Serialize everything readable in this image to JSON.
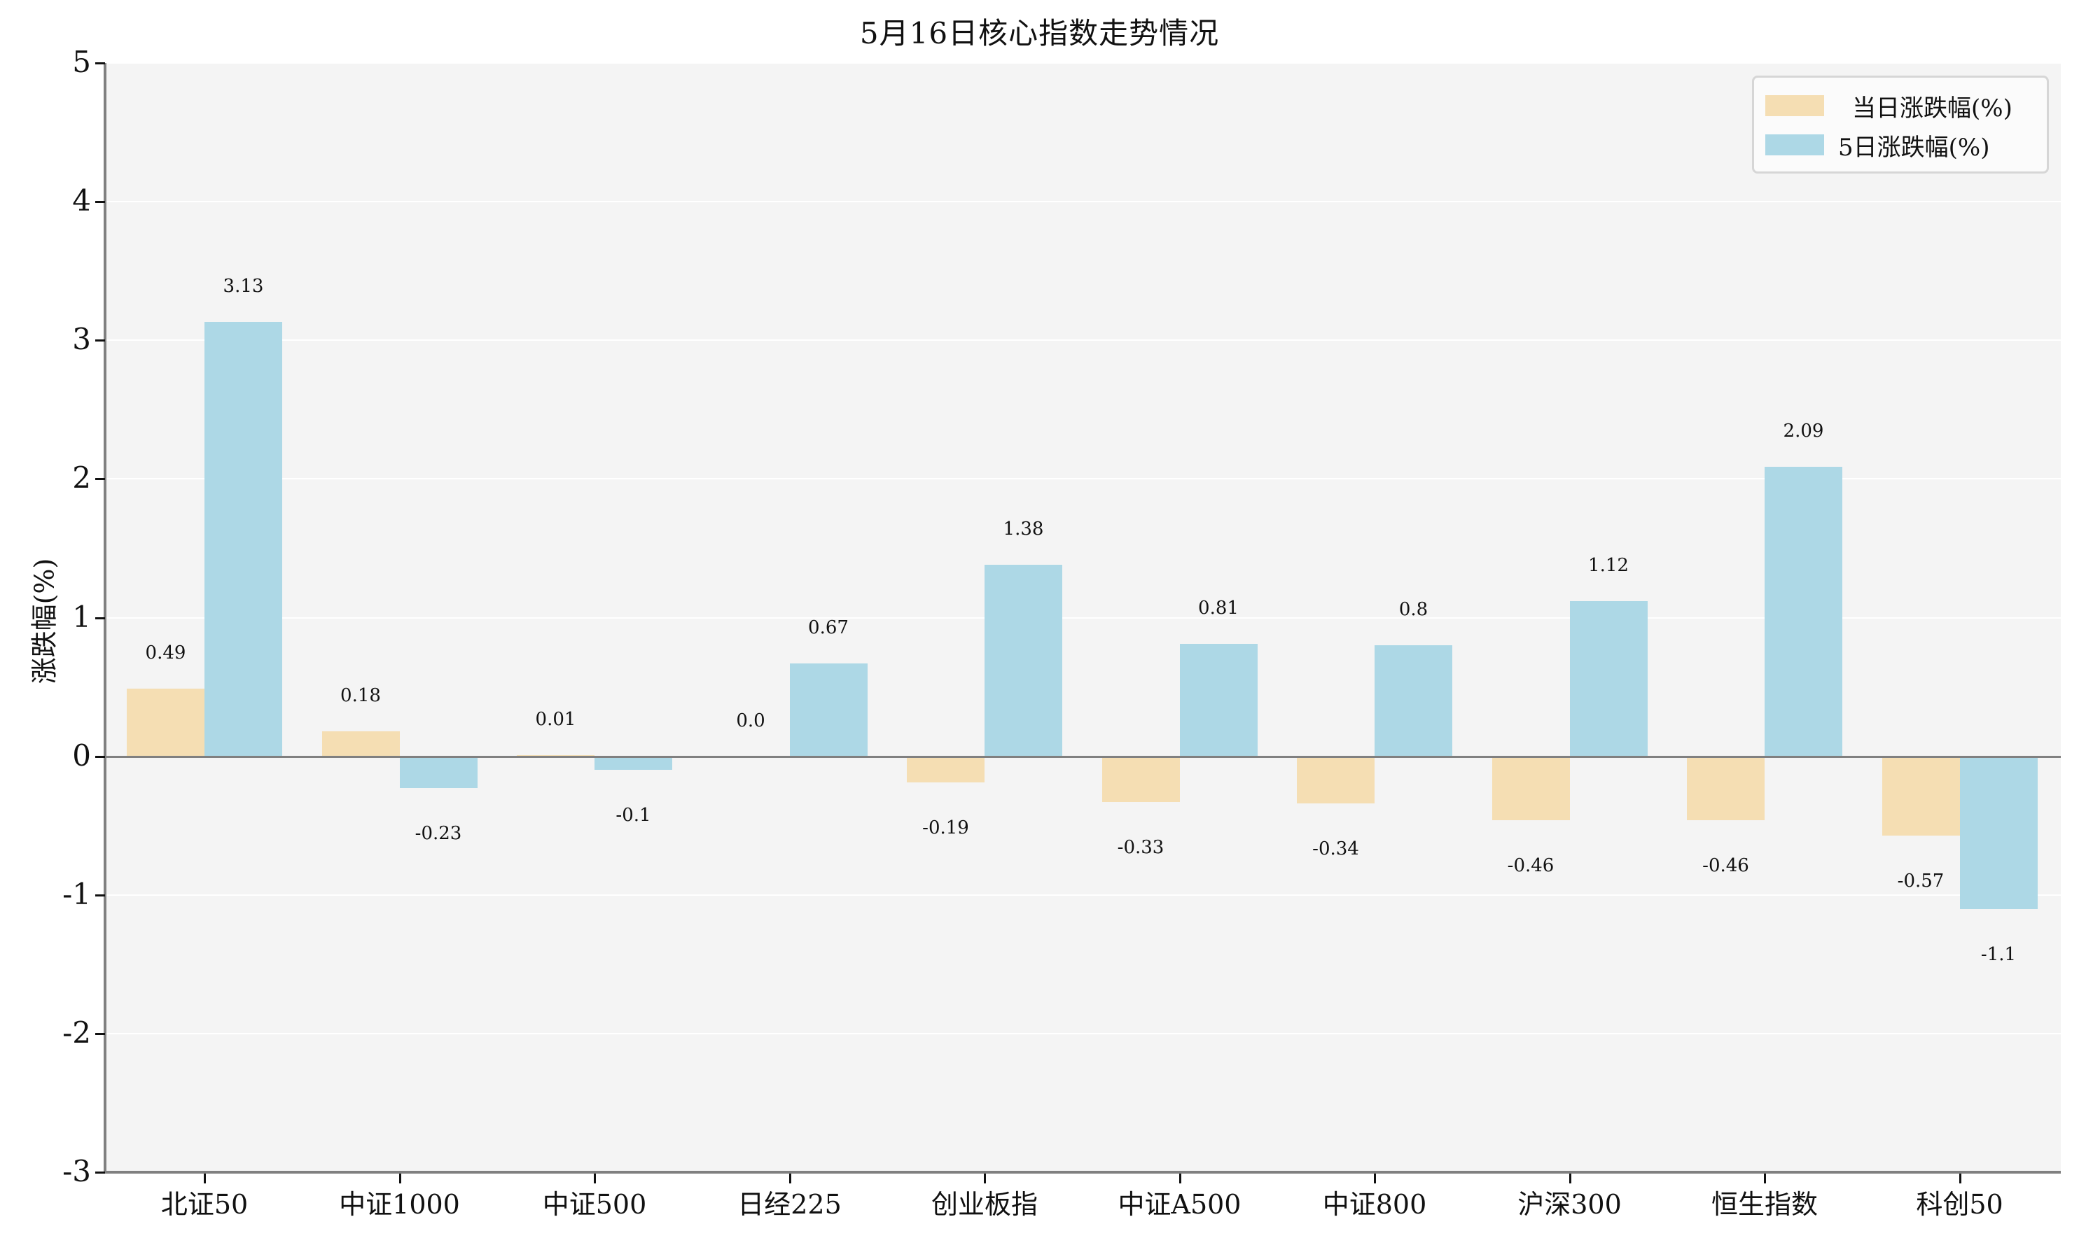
{
  "chart_data": {
    "type": "bar",
    "title": "5月16日核心指数走势情况",
    "xlabel": "",
    "ylabel": "涨跌幅(%)",
    "ylim": [
      -3,
      5
    ],
    "yticks": [
      "-3",
      "-2",
      "-1",
      "0",
      "1",
      "2",
      "3",
      "4",
      "5"
    ],
    "grid": true,
    "legend_position": "upper right",
    "categories": [
      "北证50",
      "中证1000",
      "中证500",
      "日经225",
      "创业板指",
      "中证A500",
      "中证800",
      "沪深300",
      "恒生指数",
      "科创50"
    ],
    "series": [
      {
        "name": "当日涨跌幅(%)",
        "color": "#f5deb3",
        "values": [
          0.49,
          0.18,
          0.01,
          0.0,
          -0.19,
          -0.33,
          -0.34,
          -0.46,
          -0.46,
          -0.57
        ],
        "labels": [
          "0.49",
          "0.18",
          "0.01",
          "0.0",
          "-0.19",
          "-0.33",
          "-0.34",
          "-0.46",
          "-0.46",
          "-0.57"
        ]
      },
      {
        "name": "5日涨跌幅(%)",
        "color": "#add8e6",
        "values": [
          3.13,
          -0.23,
          -0.1,
          0.67,
          1.38,
          0.81,
          0.8,
          1.12,
          2.09,
          -1.1
        ],
        "labels": [
          "3.13",
          "-0.23",
          "-0.1",
          "0.67",
          "1.38",
          "0.81",
          "0.8",
          "1.12",
          "2.09",
          "-1.1"
        ]
      }
    ]
  },
  "legend": {
    "items": [
      {
        "label": "当日涨跌幅(%)",
        "color": "#f5deb3"
      },
      {
        "label": "5日涨跌幅(%)",
        "color": "#add8e6"
      }
    ]
  },
  "colors": {
    "plot_bg": "#f4f4f4",
    "axis": "#808080",
    "grid": "#ffffff"
  }
}
